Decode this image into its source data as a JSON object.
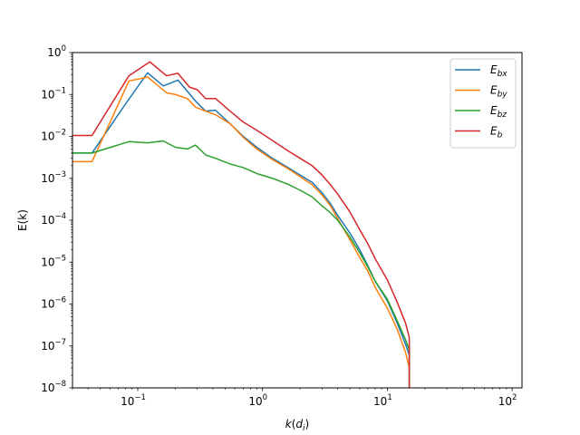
{
  "chart_data": {
    "type": "line",
    "x_scale": "log",
    "y_scale": "log",
    "xlim": [
      0.03,
      120
    ],
    "ylim": [
      1e-08,
      1
    ],
    "x_ticks": [
      {
        "value": 0.1,
        "base": "10",
        "exp": "−1"
      },
      {
        "value": 1,
        "base": "10",
        "exp": "0"
      },
      {
        "value": 10,
        "base": "10",
        "exp": "1"
      },
      {
        "value": 100,
        "base": "10",
        "exp": "2"
      }
    ],
    "y_ticks": [
      {
        "value": 1e-08,
        "base": "10",
        "exp": "−8"
      },
      {
        "value": 1e-07,
        "base": "10",
        "exp": "−7"
      },
      {
        "value": 1e-06,
        "base": "10",
        "exp": "−6"
      },
      {
        "value": 1e-05,
        "base": "10",
        "exp": "−5"
      },
      {
        "value": 0.0001,
        "base": "10",
        "exp": "−4"
      },
      {
        "value": 0.001,
        "base": "10",
        "exp": "−3"
      },
      {
        "value": 0.01,
        "base": "10",
        "exp": "−2"
      },
      {
        "value": 0.1,
        "base": "10",
        "exp": "−1"
      },
      {
        "value": 1,
        "base": "10",
        "exp": "0"
      }
    ],
    "xlabel": {
      "base": "k",
      "paren_open": "(",
      "main": "d",
      "sub": "i",
      "paren_close": ")"
    },
    "ylabel": "E(k)",
    "legend_position": "top-right",
    "grid": false,
    "series": [
      {
        "name": "E",
        "sub": "bx",
        "color": "#1f77b4",
        "points": [
          [
            0.03,
            0.004
          ],
          [
            0.043,
            0.004
          ],
          [
            0.08,
            0.06
          ],
          [
            0.12,
            0.33
          ],
          [
            0.16,
            0.16
          ],
          [
            0.21,
            0.22
          ],
          [
            0.29,
            0.07
          ],
          [
            0.35,
            0.04
          ],
          [
            0.42,
            0.042
          ],
          [
            0.55,
            0.02
          ],
          [
            0.7,
            0.01
          ],
          [
            0.9,
            0.0055
          ],
          [
            1.2,
            0.003
          ],
          [
            1.6,
            0.0018
          ],
          [
            2.0,
            0.0012
          ],
          [
            2.5,
            0.0008
          ],
          [
            3.0,
            0.00045
          ],
          [
            3.5,
            0.00025
          ],
          [
            4.0,
            0.00013
          ],
          [
            5.0,
            5e-05
          ],
          [
            6.0,
            2e-05
          ],
          [
            7.0,
            8e-06
          ],
          [
            8.0,
            3.5e-06
          ],
          [
            10.0,
            1.2e-06
          ],
          [
            12.0,
            3.5e-07
          ],
          [
            14.0,
            1.1e-07
          ],
          [
            15.0,
            6e-08
          ],
          [
            15.0,
            1e-08
          ]
        ]
      },
      {
        "name": "E",
        "sub": "by",
        "color": "#ff7f0e",
        "points": [
          [
            0.03,
            0.0025
          ],
          [
            0.043,
            0.0025
          ],
          [
            0.085,
            0.21
          ],
          [
            0.12,
            0.26
          ],
          [
            0.17,
            0.11
          ],
          [
            0.2,
            0.1
          ],
          [
            0.25,
            0.08
          ],
          [
            0.29,
            0.05
          ],
          [
            0.35,
            0.04
          ],
          [
            0.42,
            0.033
          ],
          [
            0.55,
            0.02
          ],
          [
            0.7,
            0.0095
          ],
          [
            0.9,
            0.005
          ],
          [
            1.2,
            0.0028
          ],
          [
            1.6,
            0.0017
          ],
          [
            2.0,
            0.0011
          ],
          [
            2.5,
            0.0007
          ],
          [
            3.0,
            0.0004
          ],
          [
            3.5,
            0.00022
          ],
          [
            4.0,
            0.00011
          ],
          [
            5.0,
            3.5e-05
          ],
          [
            6.0,
            1.3e-05
          ],
          [
            7.0,
            6e-06
          ],
          [
            8.0,
            2.5e-06
          ],
          [
            10.0,
            8e-07
          ],
          [
            12.0,
            2.5e-07
          ],
          [
            14.0,
            7e-08
          ],
          [
            15.0,
            3e-08
          ],
          [
            15.0,
            1e-08
          ]
        ]
      },
      {
        "name": "E",
        "sub": "bz",
        "color": "#2ca02c",
        "points": [
          [
            0.03,
            0.004
          ],
          [
            0.043,
            0.004
          ],
          [
            0.085,
            0.0075
          ],
          [
            0.12,
            0.007
          ],
          [
            0.16,
            0.0078
          ],
          [
            0.2,
            0.0055
          ],
          [
            0.25,
            0.005
          ],
          [
            0.29,
            0.0062
          ],
          [
            0.35,
            0.0036
          ],
          [
            0.42,
            0.003
          ],
          [
            0.55,
            0.0022
          ],
          [
            0.7,
            0.0018
          ],
          [
            0.9,
            0.0013
          ],
          [
            1.2,
            0.001
          ],
          [
            1.6,
            0.00072
          ],
          [
            2.0,
            0.00052
          ],
          [
            2.5,
            0.00036
          ],
          [
            3.0,
            0.00022
          ],
          [
            3.5,
            0.00015
          ],
          [
            4.0,
            0.0001
          ],
          [
            5.0,
            4e-05
          ],
          [
            6.0,
            1.7e-05
          ],
          [
            7.0,
            7.5e-06
          ],
          [
            8.0,
            3.5e-06
          ],
          [
            10.0,
            1.3e-06
          ],
          [
            12.0,
            4e-07
          ],
          [
            14.0,
            1.4e-07
          ],
          [
            15.0,
            8e-08
          ],
          [
            15.0,
            1e-08
          ]
        ]
      },
      {
        "name": "E",
        "sub": "b",
        "color": "#d62728",
        "points": [
          [
            0.03,
            0.0105
          ],
          [
            0.043,
            0.0105
          ],
          [
            0.085,
            0.28
          ],
          [
            0.125,
            0.6
          ],
          [
            0.17,
            0.28
          ],
          [
            0.21,
            0.32
          ],
          [
            0.26,
            0.15
          ],
          [
            0.3,
            0.13
          ],
          [
            0.35,
            0.08
          ],
          [
            0.42,
            0.08
          ],
          [
            0.55,
            0.04
          ],
          [
            0.7,
            0.022
          ],
          [
            0.9,
            0.014
          ],
          [
            1.2,
            0.008
          ],
          [
            1.6,
            0.0045
          ],
          [
            2.0,
            0.003
          ],
          [
            2.5,
            0.002
          ],
          [
            3.0,
            0.0012
          ],
          [
            3.5,
            0.0007
          ],
          [
            4.0,
            0.00042
          ],
          [
            5.0,
            0.00016
          ],
          [
            6.0,
            6e-05
          ],
          [
            7.0,
            2.7e-05
          ],
          [
            8.0,
            1.2e-05
          ],
          [
            10.0,
            3.8e-06
          ],
          [
            12.0,
            1.1e-06
          ],
          [
            14.0,
            3.5e-07
          ],
          [
            15.0,
            1.6e-07
          ],
          [
            15.0,
            1e-08
          ]
        ]
      }
    ]
  }
}
